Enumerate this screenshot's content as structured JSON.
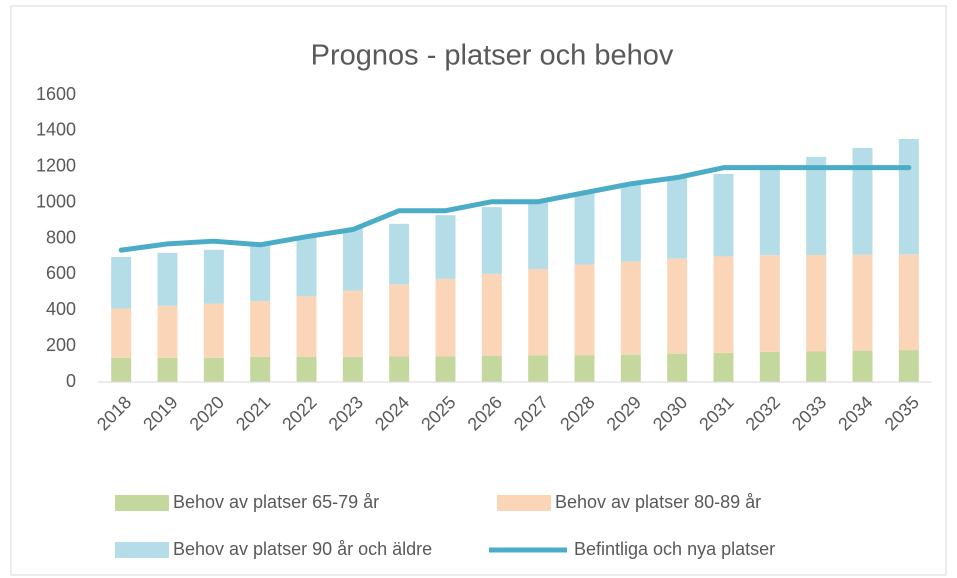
{
  "chart_data": {
    "type": "combo",
    "title": "Prognos - platser och behov",
    "categories": [
      "2018",
      "2019",
      "2020",
      "2021",
      "2022",
      "2023",
      "2024",
      "2025",
      "2026",
      "2027",
      "2028",
      "2029",
      "2030",
      "2031",
      "2032",
      "2033",
      "2034",
      "2035"
    ],
    "series": [
      {
        "name": "Behov av platser 65-79 år",
        "type": "bar",
        "color": "#c4d89e",
        "values": [
          135,
          135,
          135,
          140,
          140,
          140,
          142,
          142,
          145,
          148,
          150,
          152,
          158,
          162,
          168,
          170,
          175,
          178
        ]
      },
      {
        "name": "Behov av platser 80-89 år",
        "type": "bar",
        "color": "#fbd5b8",
        "values": [
          275,
          290,
          302,
          312,
          338,
          370,
          403,
          433,
          458,
          482,
          505,
          520,
          530,
          538,
          539,
          538,
          535,
          534
        ]
      },
      {
        "name": "Behov av platser  90 år och äldre",
        "type": "bar",
        "color": "#b5dde7",
        "values": [
          287,
          295,
          300,
          323,
          332,
          345,
          337,
          355,
          372,
          385,
          405,
          428,
          457,
          460,
          503,
          547,
          595,
          643
        ]
      },
      {
        "name": "Befintliga och nya platser",
        "type": "line",
        "color": "#4aacc6",
        "values": [
          735,
          770,
          785,
          765,
          810,
          850,
          955,
          955,
          1005,
          1005,
          1055,
          1105,
          1140,
          1195,
          1195,
          1195,
          1195,
          1195
        ]
      }
    ],
    "stacked": true,
    "ylim": [
      0,
      1600
    ],
    "yticks": [
      0,
      200,
      400,
      600,
      800,
      1000,
      1200,
      1400,
      1600
    ],
    "grid": false
  }
}
